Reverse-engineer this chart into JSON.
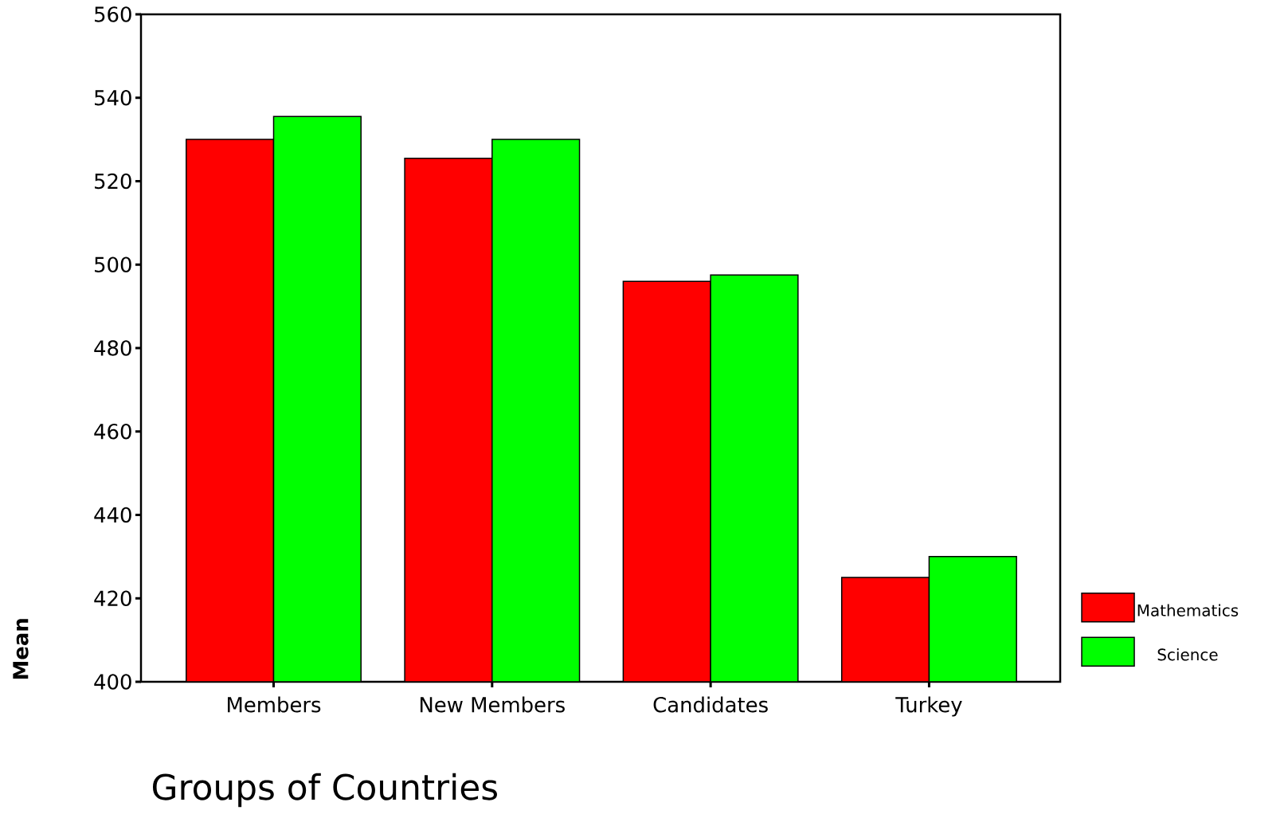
{
  "chart_data": {
    "type": "bar",
    "xlabel": "Groups of Countries",
    "ylabel": "Mean",
    "categories": [
      "Members",
      "New Members",
      "Candidates",
      "Turkey"
    ],
    "series": [
      {
        "name": "Mathematics",
        "color": "#ff0000",
        "values": [
          530,
          525.5,
          496,
          425
        ]
      },
      {
        "name": "Science",
        "color": "#00ff00",
        "values": [
          535.5,
          530,
          497.5,
          430
        ]
      }
    ],
    "ylim": [
      400,
      560
    ],
    "yticks": [
      400,
      420,
      440,
      460,
      480,
      500,
      520,
      540,
      560
    ],
    "legend": "right"
  }
}
